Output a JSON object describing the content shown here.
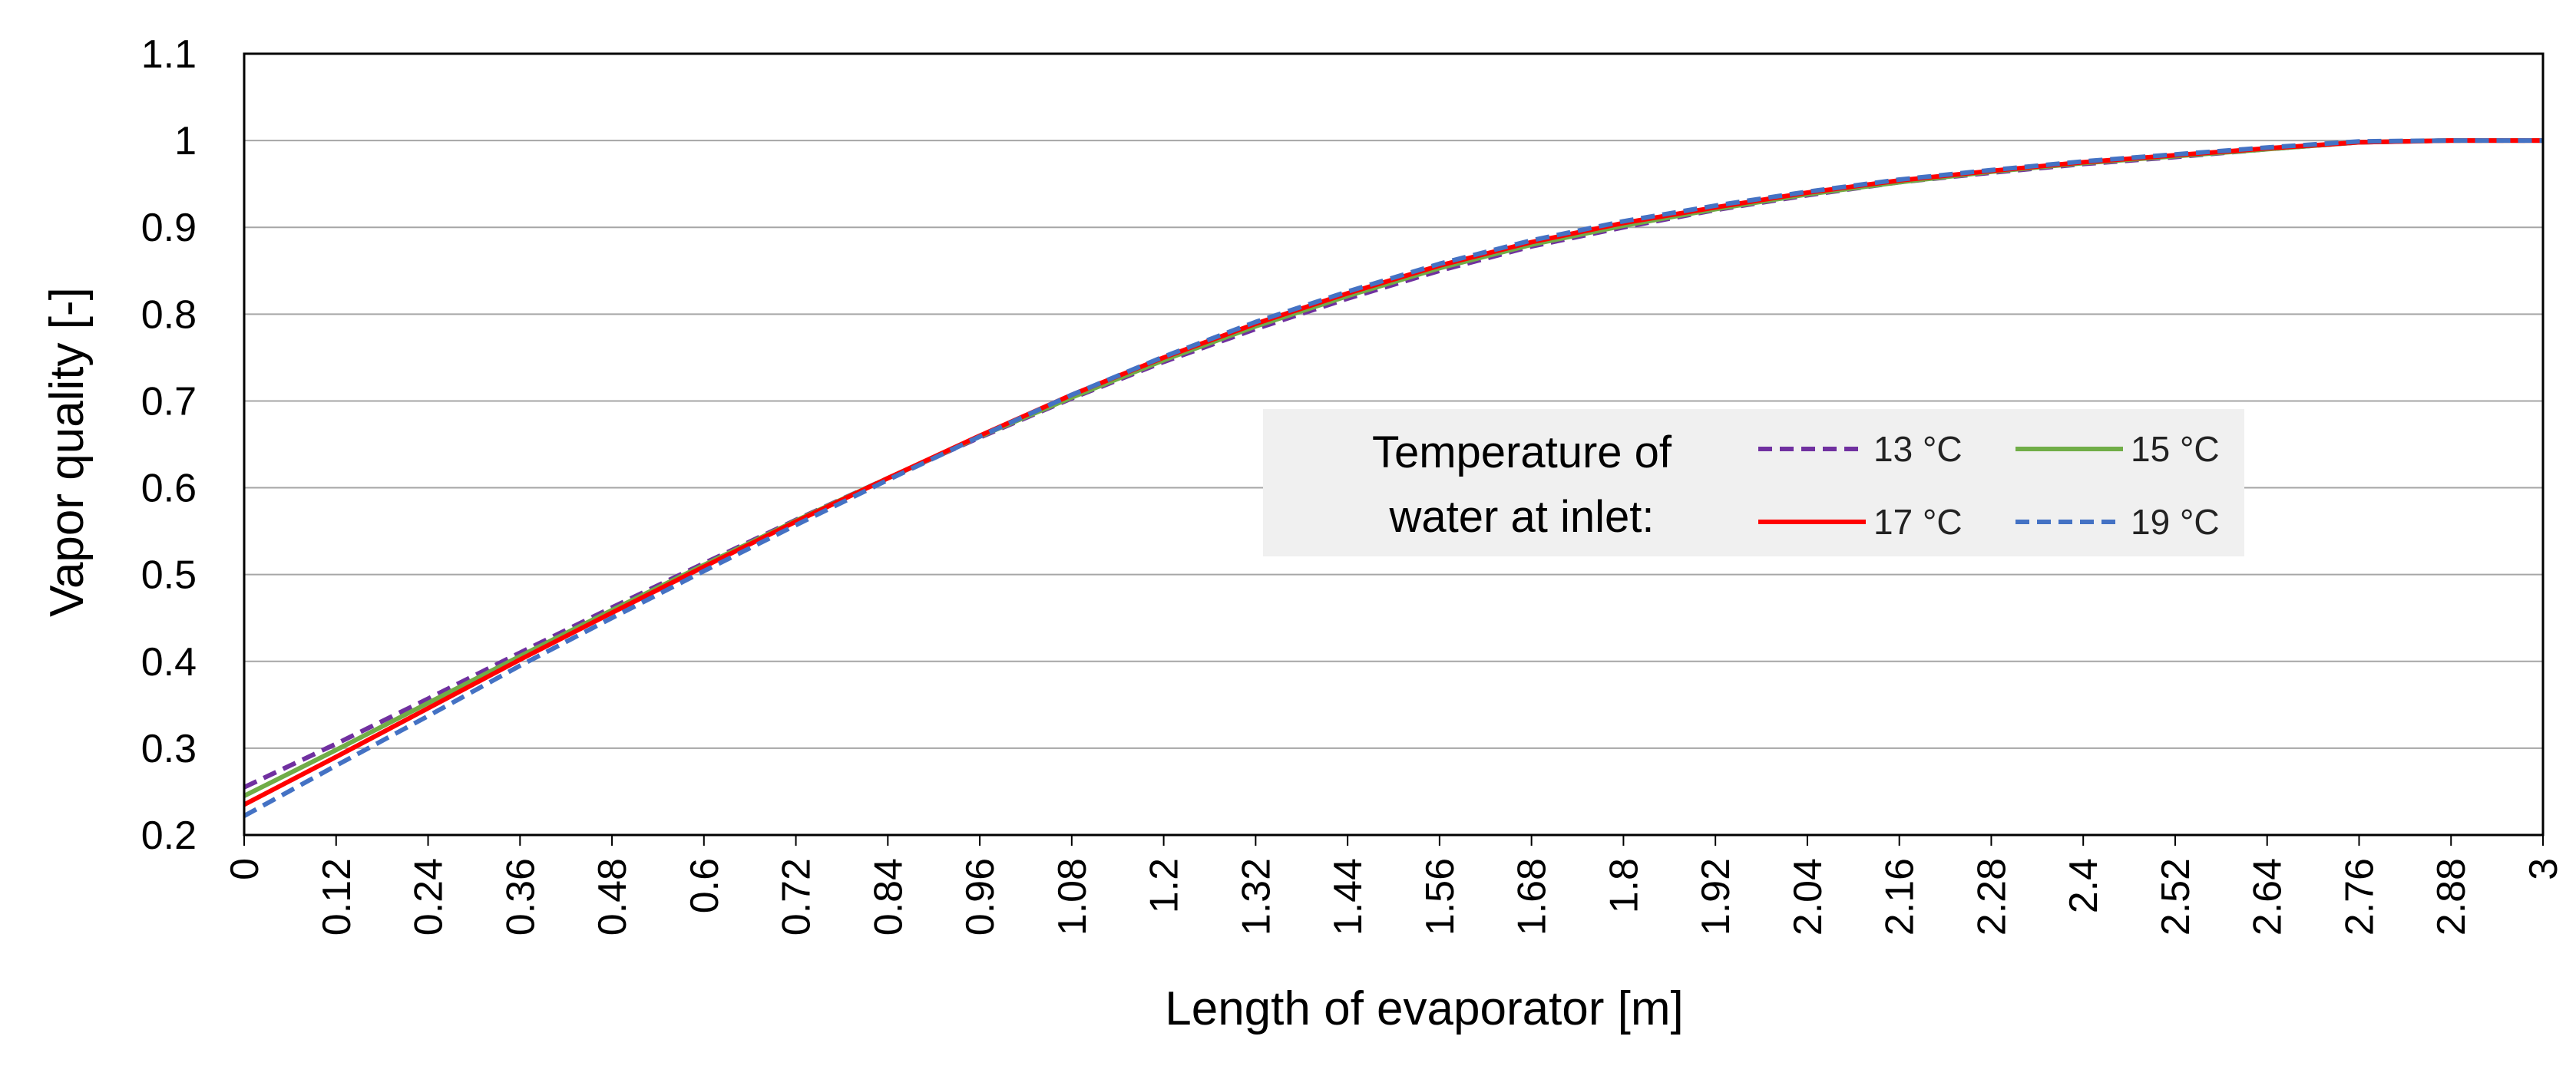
{
  "chart_data": {
    "type": "line",
    "xlabel": "Length of evaporator [m]",
    "ylabel": "Vapor quality [-]",
    "xlim": [
      0,
      3
    ],
    "ylim": [
      0.2,
      1.1
    ],
    "x_ticks": [
      "0",
      "0.12",
      "0.24",
      "0.36",
      "0.48",
      "0.6",
      "0.72",
      "0.84",
      "0.96",
      "1.08",
      "1.2",
      "1.32",
      "1.44",
      "1.56",
      "1.68",
      "1.8",
      "1.92",
      "2.04",
      "2.16",
      "2.28",
      "2.4",
      "2.52",
      "2.64",
      "2.76",
      "2.88",
      "3"
    ],
    "y_ticks": [
      "0.2",
      "0.3",
      "0.4",
      "0.5",
      "0.6",
      "0.7",
      "0.8",
      "0.9",
      "1",
      "1.1"
    ],
    "grid": "horizontal",
    "legend": {
      "title_lines": [
        "Temperature of",
        "water at inlet:"
      ],
      "position": "center-right"
    },
    "x": [
      0,
      0.12,
      0.24,
      0.36,
      0.48,
      0.6,
      0.72,
      0.84,
      0.96,
      1.08,
      1.2,
      1.32,
      1.44,
      1.56,
      1.68,
      1.8,
      1.92,
      2.04,
      2.16,
      2.28,
      2.4,
      2.52,
      2.64,
      2.76,
      2.88,
      3
    ],
    "series": [
      {
        "name": "13 °C",
        "color": "#7030a0",
        "dash": "dashed",
        "values": [
          0.255,
          0.305,
          0.357,
          0.41,
          0.462,
          0.513,
          0.563,
          0.611,
          0.658,
          0.703,
          0.745,
          0.783,
          0.818,
          0.85,
          0.878,
          0.9,
          0.92,
          0.937,
          0.952,
          0.963,
          0.973,
          0.981,
          0.99,
          0.998,
          1.0,
          1.0
        ]
      },
      {
        "name": "15 °C",
        "color": "#70ad47",
        "dash": "solid",
        "values": [
          0.245,
          0.298,
          0.352,
          0.406,
          0.459,
          0.511,
          0.562,
          0.611,
          0.659,
          0.704,
          0.747,
          0.786,
          0.821,
          0.853,
          0.88,
          0.902,
          0.921,
          0.938,
          0.952,
          0.964,
          0.974,
          0.982,
          0.99,
          0.998,
          1.0,
          1.0
        ]
      },
      {
        "name": "17 °C",
        "color": "#ff0000",
        "dash": "solid",
        "values": [
          0.235,
          0.29,
          0.346,
          0.402,
          0.456,
          0.509,
          0.561,
          0.611,
          0.66,
          0.707,
          0.75,
          0.789,
          0.824,
          0.856,
          0.883,
          0.905,
          0.923,
          0.94,
          0.954,
          0.965,
          0.975,
          0.983,
          0.991,
          0.998,
          1.0,
          1.0
        ]
      },
      {
        "name": "19 °C",
        "color": "#4472c4",
        "dash": "dashed",
        "values": [
          0.222,
          0.28,
          0.337,
          0.395,
          0.45,
          0.504,
          0.557,
          0.609,
          0.659,
          0.707,
          0.751,
          0.791,
          0.826,
          0.858,
          0.885,
          0.907,
          0.925,
          0.941,
          0.955,
          0.966,
          0.976,
          0.984,
          0.992,
          0.999,
          1.0,
          1.0
        ]
      }
    ]
  }
}
